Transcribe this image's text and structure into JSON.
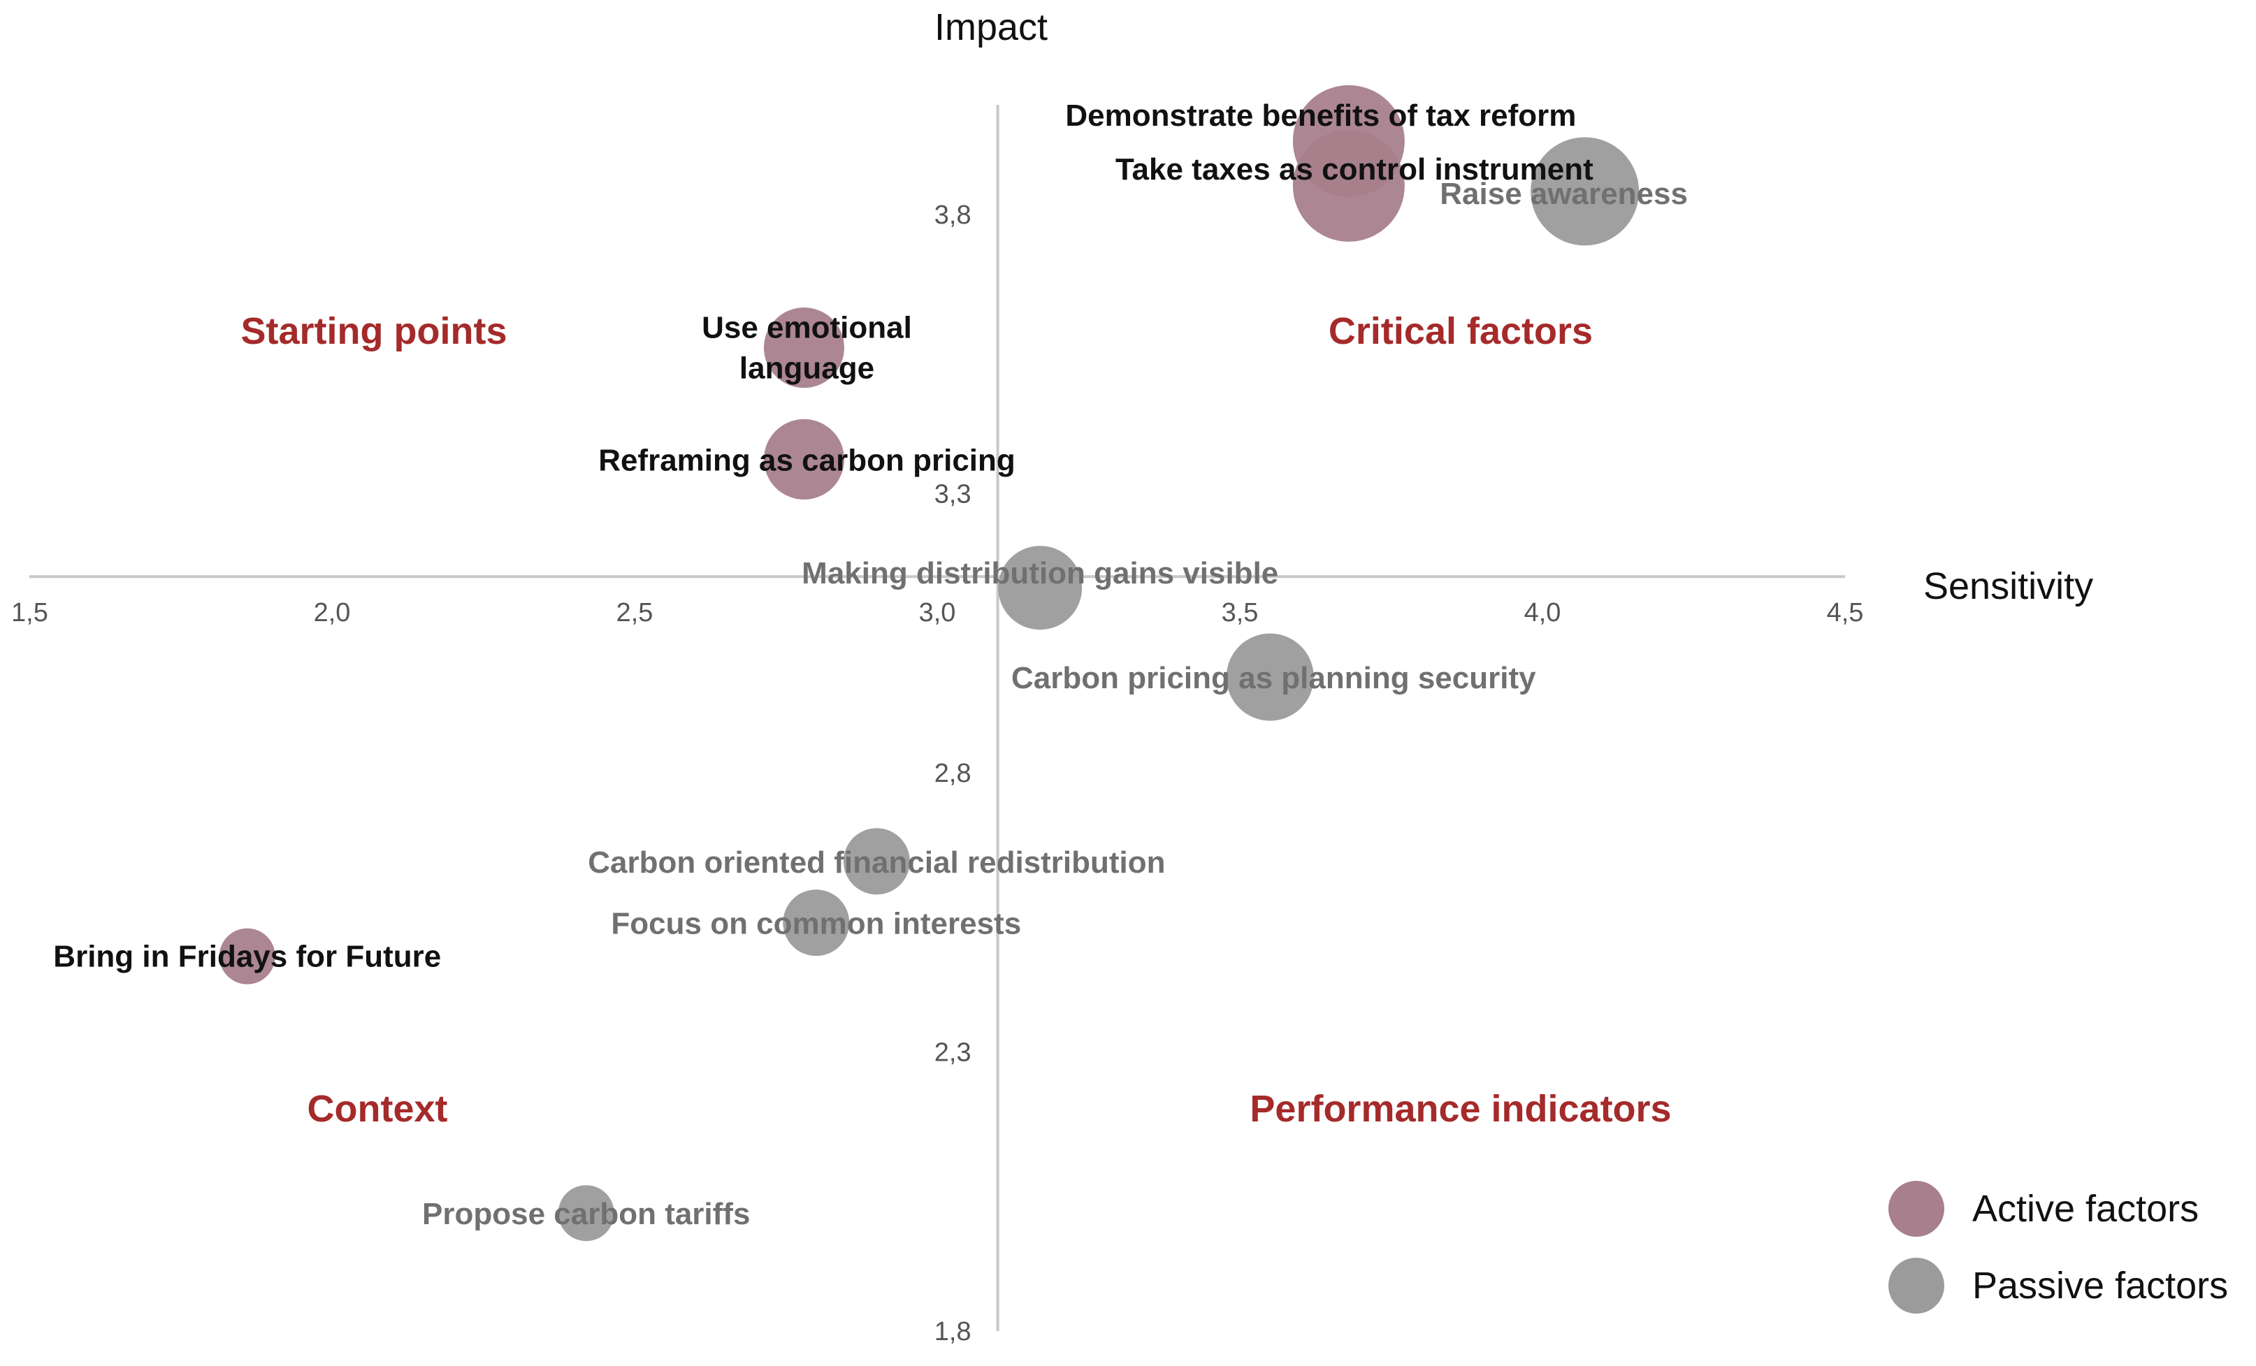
{
  "chart_data": {
    "type": "scatter",
    "xlabel": "Sensitivity",
    "ylabel": "Impact",
    "xlim": [
      1.5,
      4.5
    ],
    "ylim": [
      1.8,
      4.0
    ],
    "x_ticks": [
      "1,5",
      "2,0",
      "2,5",
      "3,0",
      "3,5",
      "4,0",
      "4,5"
    ],
    "y_ticks": [
      "1,8",
      "2,3",
      "2,8",
      "3,3",
      "3,8"
    ],
    "axis_cross": {
      "x": 3.1,
      "y": 3.15
    },
    "grid": false,
    "legend_position": "bottom-right",
    "quadrants": [
      {
        "label": "Starting points",
        "position": "top-left"
      },
      {
        "label": "Critical factors",
        "position": "top-right"
      },
      {
        "label": "Context",
        "position": "bottom-left"
      },
      {
        "label": "Performance indicators",
        "position": "bottom-right"
      }
    ],
    "series": [
      {
        "name": "Active factors",
        "color": "#a87f8c",
        "points": [
          {
            "label": "Demonstrate benefits of tax reform",
            "x": 3.68,
            "y": 3.93,
            "size": 1.6
          },
          {
            "label": "Take taxes as control instrument",
            "x": 3.68,
            "y": 3.85,
            "size": 1.6
          },
          {
            "label": "Use emotional language",
            "x": 2.78,
            "y": 3.56,
            "size": 1.15
          },
          {
            "label": "Reframing as carbon pricing",
            "x": 2.78,
            "y": 3.36,
            "size": 1.15
          },
          {
            "label": "Bring in Fridays for Future",
            "x": 1.86,
            "y": 2.47,
            "size": 0.8
          }
        ]
      },
      {
        "name": "Passive factors",
        "color": "#9b9b9b",
        "points": [
          {
            "label": "Raise awareness",
            "x": 4.07,
            "y": 3.84,
            "size": 1.55
          },
          {
            "label": "Making distribution gains visible",
            "x": 3.17,
            "y": 3.13,
            "size": 1.2
          },
          {
            "label": "Carbon pricing as planning security",
            "x": 3.55,
            "y": 2.97,
            "size": 1.25
          },
          {
            "label": "Carbon oriented financial redistribution",
            "x": 2.9,
            "y": 2.64,
            "size": 0.95
          },
          {
            "label": "Focus on common interests",
            "x": 2.8,
            "y": 2.53,
            "size": 0.95
          },
          {
            "label": "Propose carbon tariffs",
            "x": 2.42,
            "y": 2.01,
            "size": 0.8
          }
        ]
      }
    ]
  }
}
